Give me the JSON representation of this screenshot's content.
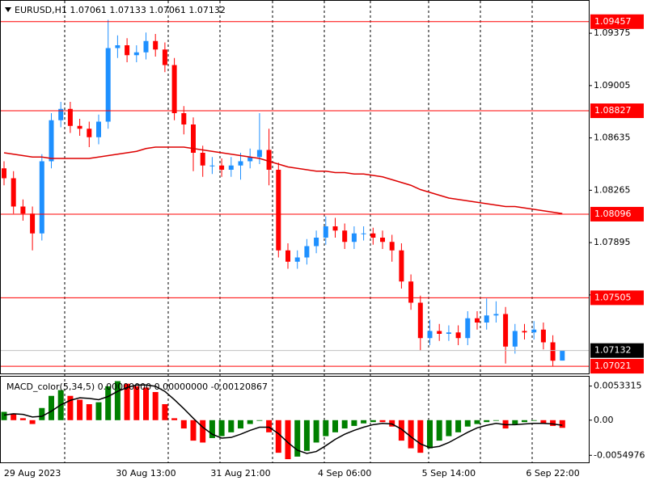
{
  "chart_data": [
    {
      "type": "candlestick",
      "title": "EURUSD,H1  1.07061 1.07133 1.07061 1.07132",
      "categories": [
        null,
        null,
        null,
        "29 Aug 2023",
        null,
        null,
        null,
        null,
        null,
        null,
        null,
        null,
        null,
        null,
        null,
        "30 Aug 13:00",
        null,
        null,
        null,
        null,
        null,
        null,
        null,
        null,
        null,
        "31 Aug 21:00",
        null,
        null,
        null,
        null,
        null,
        null,
        null,
        null,
        null,
        null,
        "4 Sep 06:00",
        null,
        null,
        null,
        null,
        null,
        null,
        null,
        null,
        null,
        null,
        "5 Sep 14:00",
        null,
        null,
        null,
        null,
        null,
        null,
        null,
        null,
        null,
        null,
        "6 Sep 22:00",
        null
      ],
      "ohlc": [
        [
          1.0842,
          1.0847,
          1.083,
          1.0835
        ],
        [
          1.0835,
          1.084,
          1.081,
          1.0815
        ],
        [
          1.0815,
          1.082,
          1.0805,
          1.081
        ],
        [
          1.081,
          1.0815,
          1.0784,
          1.0796
        ],
        [
          1.0796,
          1.0852,
          1.0791,
          1.0847
        ],
        [
          1.0847,
          1.0881,
          1.0842,
          1.0876
        ],
        [
          1.0876,
          1.0889,
          1.0871,
          1.0884
        ],
        [
          1.0884,
          1.0889,
          1.0867,
          1.0872
        ],
        [
          1.0872,
          1.0877,
          1.0865,
          1.087
        ],
        [
          1.087,
          1.0875,
          1.0857,
          1.0864
        ],
        [
          1.0864,
          1.088,
          1.0859,
          1.0875
        ],
        [
          1.0875,
          1.0947,
          1.087,
          1.0927
        ],
        [
          1.0927,
          1.0936,
          1.092,
          1.0929
        ],
        [
          1.0929,
          1.0934,
          1.0917,
          1.0922
        ],
        [
          1.0922,
          1.0929,
          1.0917,
          1.0924
        ],
        [
          1.0924,
          1.0938,
          1.0919,
          1.0932
        ],
        [
          1.0932,
          1.0937,
          1.0921,
          1.0926
        ],
        [
          1.0926,
          1.0931,
          1.091,
          1.0915
        ],
        [
          1.0915,
          1.092,
          1.0876,
          1.0881
        ],
        [
          1.0881,
          1.0886,
          1.0866,
          1.0873
        ],
        [
          1.0873,
          1.0878,
          1.084,
          1.0853
        ],
        [
          1.0853,
          1.0858,
          1.0836,
          1.0844
        ],
        [
          1.0844,
          1.085,
          1.0838,
          1.0844
        ],
        [
          1.0844,
          1.0849,
          1.0836,
          1.0841
        ],
        [
          1.0841,
          1.085,
          1.0836,
          1.0844
        ],
        [
          1.0844,
          1.0853,
          1.0834,
          1.0847
        ],
        [
          1.0847,
          1.0856,
          1.0842,
          1.085
        ],
        [
          1.085,
          1.0881,
          1.0845,
          1.0855
        ],
        [
          1.0855,
          1.087,
          1.083,
          1.0841
        ],
        [
          1.0841,
          1.0846,
          1.0779,
          1.0784
        ],
        [
          1.0784,
          1.0789,
          1.0771,
          1.0776
        ],
        [
          1.0776,
          1.0784,
          1.0771,
          1.0779
        ],
        [
          1.0779,
          1.0792,
          1.0774,
          1.0787
        ],
        [
          1.0787,
          1.0798,
          1.0782,
          1.0793
        ],
        [
          1.0793,
          1.0808,
          1.0788,
          1.0801
        ],
        [
          1.0801,
          1.0807,
          1.0793,
          1.0798
        ],
        [
          1.0798,
          1.0803,
          1.0785,
          1.079
        ],
        [
          1.079,
          1.0801,
          1.0785,
          1.0796
        ],
        [
          1.0796,
          1.0801,
          1.0791,
          1.0796
        ],
        [
          1.0796,
          1.08,
          1.0788,
          1.0793
        ],
        [
          1.0793,
          1.0798,
          1.0785,
          1.079
        ],
        [
          1.079,
          1.0795,
          1.0776,
          1.0784
        ],
        [
          1.0784,
          1.0789,
          1.0757,
          1.0762
        ],
        [
          1.0762,
          1.0767,
          1.0742,
          1.0747
        ],
        [
          1.0747,
          1.0752,
          1.0713,
          1.0722
        ],
        [
          1.0722,
          1.0735,
          1.0717,
          1.0727
        ],
        [
          1.0727,
          1.0732,
          1.072,
          1.0725
        ],
        [
          1.0725,
          1.0731,
          1.072,
          1.0726
        ],
        [
          1.0726,
          1.0731,
          1.0717,
          1.0722
        ],
        [
          1.0722,
          1.0741,
          1.0717,
          1.0736
        ],
        [
          1.0736,
          1.0741,
          1.0728,
          1.0733
        ],
        [
          1.0733,
          1.075,
          1.0728,
          1.0738
        ],
        [
          1.0738,
          1.0748,
          1.0733,
          1.0739
        ],
        [
          1.0739,
          1.0744,
          1.0704,
          1.0716
        ],
        [
          1.0716,
          1.0732,
          1.0711,
          1.0727
        ],
        [
          1.0727,
          1.0732,
          1.0721,
          1.0726
        ],
        [
          1.0726,
          1.0734,
          1.0721,
          1.0728
        ],
        [
          1.0728,
          1.0733,
          1.0714,
          1.0719
        ],
        [
          1.0719,
          1.0724,
          1.0702,
          1.0706
        ],
        [
          1.07061,
          1.07133,
          1.07061,
          1.07132
        ]
      ],
      "up_color": "#1e90ff",
      "down_color": "#ff0000",
      "moving_average": {
        "color": "#dd0000",
        "values": [
          1.0853,
          1.0852,
          1.0851,
          1.085,
          1.085,
          1.0849,
          1.0849,
          1.0849,
          1.0849,
          1.0849,
          1.085,
          1.0851,
          1.0852,
          1.0853,
          1.0854,
          1.0856,
          1.0857,
          1.0857,
          1.0857,
          1.0857,
          1.0856,
          1.0855,
          1.0854,
          1.0853,
          1.0852,
          1.0851,
          1.085,
          1.0849,
          1.0847,
          1.0845,
          1.0843,
          1.0842,
          1.0841,
          1.084,
          1.084,
          1.0839,
          1.0839,
          1.0838,
          1.0838,
          1.0837,
          1.0836,
          1.0834,
          1.0832,
          1.083,
          1.0827,
          1.0825,
          1.0823,
          1.0821,
          1.082,
          1.0819,
          1.0818,
          1.0817,
          1.0816,
          1.0815,
          1.0815,
          1.0814,
          1.0813,
          1.0812,
          1.0811,
          1.081
        ]
      },
      "levels": {
        "color": "#ff0000",
        "values": [
          1.09457,
          1.08827,
          1.08096,
          1.07505,
          1.07021
        ]
      },
      "current_price": {
        "color": "#c0c0c0",
        "label_color": "#000000",
        "value": 1.07132
      },
      "ylim": [
        1.0697,
        1.0961
      ],
      "yticks": [
        1.09375,
        1.09005,
        1.08635,
        1.08265,
        1.07895,
        1.07525
      ]
    },
    {
      "type": "histogram",
      "title": "MACD_color(5,34,5) 0.00000000 0.00000000 -0.00120867",
      "values": [
        0.0013,
        0.001,
        0.0003,
        -0.0006,
        0.0019,
        0.0038,
        0.0047,
        0.0038,
        0.0032,
        0.0025,
        0.0028,
        0.0053,
        0.0061,
        0.0057,
        0.0053,
        0.0051,
        0.0044,
        0.0025,
        0.0003,
        -0.0013,
        -0.0032,
        -0.0035,
        -0.0028,
        -0.0025,
        -0.0019,
        -0.0013,
        -0.0006,
        -0.0001,
        -0.0019,
        -0.0051,
        -0.0061,
        -0.0057,
        -0.0048,
        -0.0035,
        -0.0025,
        -0.0019,
        -0.0013,
        -0.0009,
        -0.0005,
        -0.0003,
        -0.0003,
        -0.001,
        -0.0032,
        -0.0044,
        -0.0051,
        -0.0044,
        -0.0032,
        -0.0025,
        -0.0019,
        -0.001,
        -0.0006,
        -0.0003,
        -0.0001,
        -0.0013,
        -0.0006,
        -0.0003,
        -0.0001,
        -0.0006,
        -0.0009,
        -0.0012
      ],
      "up_color": "#008000",
      "down_color": "#ff0000",
      "signal": {
        "color": "#000000",
        "values": [
          0.0008,
          0.001,
          0.0009,
          0.0005,
          0.0006,
          0.0014,
          0.0024,
          0.0031,
          0.0035,
          0.0034,
          0.0032,
          0.0037,
          0.0045,
          0.0051,
          0.0055,
          0.0055,
          0.0053,
          0.0045,
          0.0032,
          0.0018,
          0.0003,
          -0.0011,
          -0.0022,
          -0.0028,
          -0.0027,
          -0.0022,
          -0.0016,
          -0.0011,
          -0.0011,
          -0.0021,
          -0.0035,
          -0.0047,
          -0.0052,
          -0.0049,
          -0.004,
          -0.003,
          -0.0022,
          -0.0016,
          -0.0011,
          -0.0007,
          -0.0005,
          -0.0006,
          -0.0014,
          -0.0026,
          -0.0037,
          -0.0043,
          -0.0041,
          -0.0035,
          -0.0027,
          -0.0019,
          -0.0012,
          -0.0008,
          -0.0005,
          -0.0007,
          -0.0007,
          -0.0006,
          -0.0005,
          -0.0005,
          -0.0006,
          -0.0008
        ]
      },
      "ylim": [
        -0.0066,
        0.0068
      ],
      "yticks": [
        0.0053315,
        {
          "value": 0,
          "label": "0.00"
        },
        -0.0054976
      ]
    }
  ]
}
